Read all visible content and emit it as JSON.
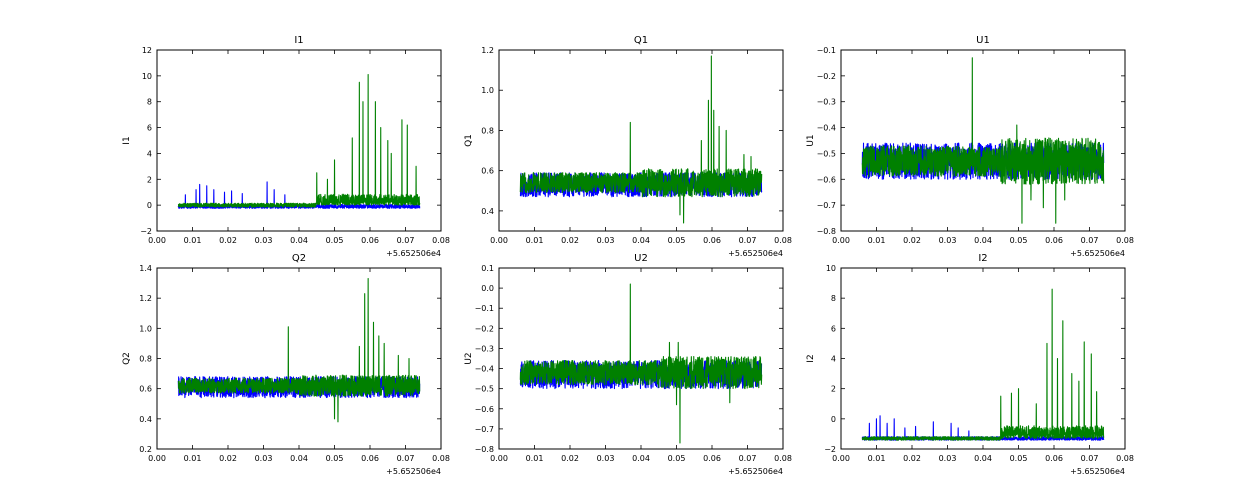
{
  "figure": {
    "background": "#ffffff"
  },
  "series_colors": {
    "blue": "#0000ff",
    "green": "#008000"
  },
  "chart_data": [
    {
      "type": "line",
      "title": "I1",
      "ylabel": "I1",
      "xlabel": "",
      "x_offset_label": "+5.652506e4",
      "xlim": [
        0.0,
        0.08
      ],
      "ylim": [
        -2,
        12
      ],
      "xticks": [
        0.0,
        0.01,
        0.02,
        0.03,
        0.04,
        0.05,
        0.06,
        0.07,
        0.08
      ],
      "xtick_labels": [
        "0.00",
        "0.01",
        "0.02",
        "0.03",
        "0.04",
        "0.05",
        "0.06",
        "0.07",
        "0.08"
      ],
      "yticks": [
        -2,
        0,
        2,
        4,
        6,
        8,
        10,
        12
      ],
      "ytick_labels": [
        "−2",
        "0",
        "2",
        "4",
        "6",
        "8",
        "10",
        "12"
      ],
      "x_range": [
        0.006,
        0.074
      ],
      "series": [
        {
          "name": "series-blue",
          "color": "#0000ff",
          "base": -0.1,
          "noise": 0.15,
          "spikes": [
            [
              0.008,
              0.8
            ],
            [
              0.011,
              1.2
            ],
            [
              0.012,
              1.6
            ],
            [
              0.014,
              1.5
            ],
            [
              0.016,
              1.2
            ],
            [
              0.019,
              1.0
            ],
            [
              0.021,
              1.1
            ],
            [
              0.024,
              0.9
            ],
            [
              0.031,
              1.8
            ],
            [
              0.033,
              1.2
            ],
            [
              0.036,
              0.8
            ]
          ]
        },
        {
          "name": "series-green",
          "color": "#008000",
          "base": 0.0,
          "noise": 0.15,
          "noise_late": 0.8,
          "late_start": 0.045,
          "spikes": [
            [
              0.045,
              2.5
            ],
            [
              0.048,
              2.0
            ],
            [
              0.05,
              3.5
            ],
            [
              0.055,
              5.2
            ],
            [
              0.057,
              9.5
            ],
            [
              0.058,
              8.0
            ],
            [
              0.0595,
              10.1
            ],
            [
              0.0615,
              8.0
            ],
            [
              0.063,
              6.0
            ],
            [
              0.065,
              5.0
            ],
            [
              0.066,
              4.0
            ],
            [
              0.069,
              6.6
            ],
            [
              0.0705,
              6.2
            ],
            [
              0.073,
              3.0
            ]
          ]
        }
      ]
    },
    {
      "type": "line",
      "title": "Q1",
      "ylabel": "Q1",
      "xlabel": "",
      "x_offset_label": "+5.652506e4",
      "xlim": [
        0.0,
        0.08
      ],
      "ylim": [
        0.3,
        1.2
      ],
      "xticks": [
        0.0,
        0.01,
        0.02,
        0.03,
        0.04,
        0.05,
        0.06,
        0.07,
        0.08
      ],
      "xtick_labels": [
        "0.00",
        "0.01",
        "0.02",
        "0.03",
        "0.04",
        "0.05",
        "0.06",
        "0.07",
        "0.08"
      ],
      "yticks": [
        0.4,
        0.6,
        0.8,
        1.0,
        1.2
      ],
      "ytick_labels": [
        "0.4",
        "0.6",
        "0.8",
        "1.0",
        "1.2"
      ],
      "x_range": [
        0.006,
        0.074
      ],
      "series": [
        {
          "name": "series-blue",
          "color": "#0000ff",
          "base": 0.53,
          "noise": 0.06,
          "spikes": []
        },
        {
          "name": "series-green",
          "color": "#008000",
          "base": 0.54,
          "noise": 0.05,
          "noise_late": 0.07,
          "late_start": 0.04,
          "spikes": [
            [
              0.037,
              0.84
            ],
            [
              0.051,
              0.38
            ],
            [
              0.052,
              0.34
            ],
            [
              0.057,
              0.75
            ],
            [
              0.059,
              0.95
            ],
            [
              0.0598,
              1.17
            ],
            [
              0.0605,
              0.9
            ],
            [
              0.062,
              0.82
            ],
            [
              0.064,
              0.8
            ],
            [
              0.069,
              0.68
            ],
            [
              0.071,
              0.67
            ]
          ]
        }
      ]
    },
    {
      "type": "line",
      "title": "U1",
      "ylabel": "U1",
      "xlabel": "",
      "x_offset_label": "+5.652506e4",
      "xlim": [
        0.0,
        0.08
      ],
      "ylim": [
        -0.8,
        -0.1
      ],
      "xticks": [
        0.0,
        0.01,
        0.02,
        0.03,
        0.04,
        0.05,
        0.06,
        0.07,
        0.08
      ],
      "xtick_labels": [
        "0.00",
        "0.01",
        "0.02",
        "0.03",
        "0.04",
        "0.05",
        "0.06",
        "0.07",
        "0.08"
      ],
      "yticks": [
        -0.8,
        -0.7,
        -0.6,
        -0.5,
        -0.4,
        -0.3,
        -0.2,
        -0.1
      ],
      "ytick_labels": [
        "−0.8",
        "−0.7",
        "−0.6",
        "−0.5",
        "−0.4",
        "−0.3",
        "−0.2",
        "−0.1"
      ],
      "x_range": [
        0.006,
        0.074
      ],
      "series": [
        {
          "name": "series-blue",
          "color": "#0000ff",
          "base": -0.53,
          "noise": 0.07,
          "spikes": []
        },
        {
          "name": "series-green",
          "color": "#008000",
          "base": -0.53,
          "noise": 0.06,
          "noise_late": 0.09,
          "late_start": 0.045,
          "spikes": [
            [
              0.037,
              -0.13
            ],
            [
              0.0495,
              -0.39
            ],
            [
              0.051,
              -0.77
            ],
            [
              0.0535,
              -0.68
            ],
            [
              0.057,
              -0.71
            ],
            [
              0.0605,
              -0.77
            ],
            [
              0.063,
              -0.68
            ]
          ]
        }
      ]
    },
    {
      "type": "line",
      "title": "Q2",
      "ylabel": "Q2",
      "xlabel": "",
      "x_offset_label": "+5.652506e4",
      "xlim": [
        0.0,
        0.08
      ],
      "ylim": [
        0.2,
        1.4
      ],
      "xticks": [
        0.0,
        0.01,
        0.02,
        0.03,
        0.04,
        0.05,
        0.06,
        0.07,
        0.08
      ],
      "xtick_labels": [
        "0.00",
        "0.01",
        "0.02",
        "0.03",
        "0.04",
        "0.05",
        "0.06",
        "0.07",
        "0.08"
      ],
      "yticks": [
        0.2,
        0.4,
        0.6,
        0.8,
        1.0,
        1.2,
        1.4
      ],
      "ytick_labels": [
        "0.2",
        "0.4",
        "0.6",
        "0.8",
        "1.0",
        "1.2",
        "1.4"
      ],
      "x_range": [
        0.006,
        0.074
      ],
      "series": [
        {
          "name": "series-blue",
          "color": "#0000ff",
          "base": 0.61,
          "noise": 0.07,
          "spikes": []
        },
        {
          "name": "series-green",
          "color": "#008000",
          "base": 0.62,
          "noise": 0.05,
          "noise_late": 0.07,
          "late_start": 0.04,
          "spikes": [
            [
              0.037,
              1.01
            ],
            [
              0.05,
              0.4
            ],
            [
              0.051,
              0.38
            ],
            [
              0.057,
              0.88
            ],
            [
              0.0585,
              1.23
            ],
            [
              0.0595,
              1.33
            ],
            [
              0.061,
              1.04
            ],
            [
              0.0625,
              0.95
            ],
            [
              0.064,
              0.9
            ],
            [
              0.068,
              0.82
            ],
            [
              0.071,
              0.8
            ]
          ]
        }
      ]
    },
    {
      "type": "line",
      "title": "U2",
      "ylabel": "U2",
      "xlabel": "",
      "x_offset_label": "+5.652506e4",
      "xlim": [
        0.0,
        0.08
      ],
      "ylim": [
        -0.8,
        0.1
      ],
      "xticks": [
        0.0,
        0.01,
        0.02,
        0.03,
        0.04,
        0.05,
        0.06,
        0.07,
        0.08
      ],
      "xtick_labels": [
        "0.00",
        "0.01",
        "0.02",
        "0.03",
        "0.04",
        "0.05",
        "0.06",
        "0.07",
        "0.08"
      ],
      "yticks": [
        -0.8,
        -0.7,
        -0.6,
        -0.5,
        -0.4,
        -0.3,
        -0.2,
        -0.1,
        0.0,
        0.1
      ],
      "ytick_labels": [
        "−0.8",
        "−0.7",
        "−0.6",
        "−0.5",
        "−0.4",
        "−0.3",
        "−0.2",
        "−0.1",
        "0.0",
        "0.1"
      ],
      "x_range": [
        0.006,
        0.074
      ],
      "series": [
        {
          "name": "series-blue",
          "color": "#0000ff",
          "base": -0.43,
          "noise": 0.07,
          "spikes": []
        },
        {
          "name": "series-green",
          "color": "#008000",
          "base": -0.42,
          "noise": 0.06,
          "noise_late": 0.08,
          "late_start": 0.045,
          "spikes": [
            [
              0.037,
              0.02
            ],
            [
              0.048,
              -0.27
            ],
            [
              0.0505,
              -0.27
            ],
            [
              0.051,
              -0.77
            ],
            [
              0.05,
              -0.58
            ],
            [
              0.065,
              -0.57
            ]
          ]
        }
      ]
    },
    {
      "type": "line",
      "title": "I2",
      "ylabel": "I2",
      "xlabel": "",
      "x_offset_label": "+5.652506e4",
      "xlim": [
        0.0,
        0.08
      ],
      "ylim": [
        -2,
        10
      ],
      "xticks": [
        0.0,
        0.01,
        0.02,
        0.03,
        0.04,
        0.05,
        0.06,
        0.07,
        0.08
      ],
      "xtick_labels": [
        "0.00",
        "0.01",
        "0.02",
        "0.03",
        "0.04",
        "0.05",
        "0.06",
        "0.07",
        "0.08"
      ],
      "yticks": [
        -2,
        0,
        2,
        4,
        6,
        8,
        10
      ],
      "ytick_labels": [
        "−2",
        "0",
        "2",
        "4",
        "6",
        "8",
        "10"
      ],
      "x_range": [
        0.006,
        0.074
      ],
      "series": [
        {
          "name": "series-blue",
          "color": "#0000ff",
          "base": -1.3,
          "noise": 0.12,
          "spikes": [
            [
              0.008,
              -0.3
            ],
            [
              0.01,
              0.0
            ],
            [
              0.011,
              0.2
            ],
            [
              0.013,
              -0.3
            ],
            [
              0.015,
              0.0
            ],
            [
              0.018,
              -0.6
            ],
            [
              0.021,
              -0.5
            ],
            [
              0.026,
              -0.2
            ],
            [
              0.031,
              -0.3
            ],
            [
              0.033,
              -0.6
            ],
            [
              0.036,
              -0.8
            ]
          ]
        },
        {
          "name": "series-green",
          "color": "#008000",
          "base": -1.3,
          "noise": 0.12,
          "noise_late": 0.8,
          "late_start": 0.045,
          "spikes": [
            [
              0.045,
              1.5
            ],
            [
              0.048,
              1.7
            ],
            [
              0.05,
              2.0
            ],
            [
              0.055,
              1.0
            ],
            [
              0.058,
              5.0
            ],
            [
              0.0595,
              8.6
            ],
            [
              0.061,
              4.0
            ],
            [
              0.0625,
              6.5
            ],
            [
              0.065,
              3.0
            ],
            [
              0.067,
              2.5
            ],
            [
              0.0685,
              5.1
            ],
            [
              0.0705,
              4.3
            ],
            [
              0.072,
              1.8
            ]
          ]
        }
      ]
    }
  ]
}
